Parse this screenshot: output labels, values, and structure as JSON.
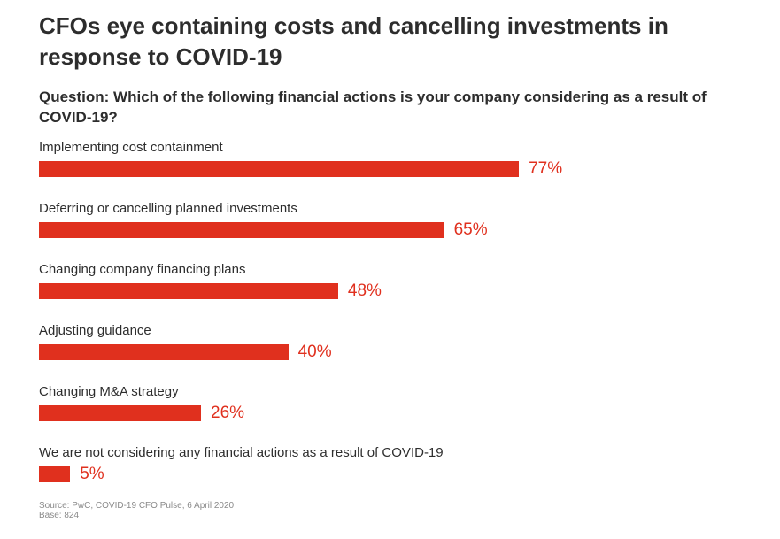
{
  "title": "CFOs eye containing costs and cancelling investments in response to COVID-19",
  "question": "Question: Which of the following financial actions is your company considering as a result of COVID-19?",
  "source": {
    "line1": "Source: PwC, COVID-19 CFO Pulse, 6 April 2020",
    "line2": "Base: 824"
  },
  "colors": {
    "bar": "#e0301e",
    "text": "#2d2d2d",
    "source": "#8a8a8a"
  },
  "chart_data": {
    "type": "bar",
    "orientation": "horizontal",
    "title": "CFOs eye containing costs and cancelling investments in response to COVID-19",
    "subtitle": "Question: Which of the following financial actions is your company considering as a result of COVID-19?",
    "xlabel": "",
    "ylabel": "",
    "xlim": [
      0,
      100
    ],
    "grid": false,
    "unit": "%",
    "categories": [
      "Implementing cost containment",
      "Deferring or cancelling planned investments",
      "Changing company financing plans",
      "Adjusting guidance",
      "Changing M&A strategy",
      "We are not considering any financial actions as a result of COVID-19"
    ],
    "values": [
      77,
      65,
      48,
      40,
      26,
      5
    ],
    "value_labels": [
      "77%",
      "65%",
      "48%",
      "40%",
      "26%",
      "5%"
    ]
  }
}
